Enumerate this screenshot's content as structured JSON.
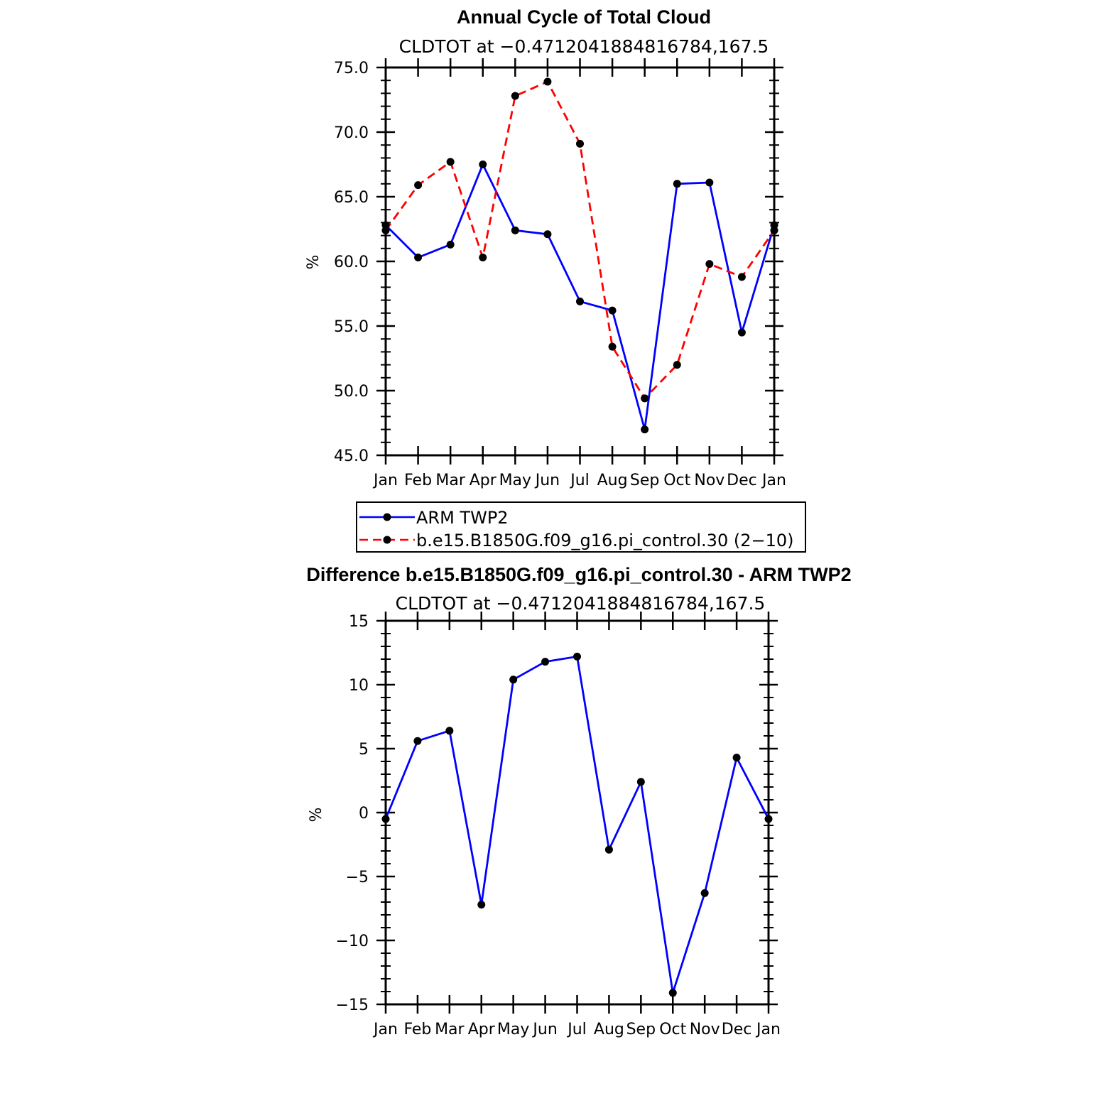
{
  "colors": {
    "obs": "#0000ff",
    "model": "#ff0000",
    "diff": "#0000ff",
    "marker": "#000000"
  },
  "chart_data": [
    {
      "id": "annual-cycle",
      "type": "line",
      "title": "Annual Cycle of Total Cloud",
      "subtitle": "CLDTOT at −0.4712041884816784,167.5",
      "ylabel": "%",
      "categories": [
        "Jan",
        "Feb",
        "Mar",
        "Apr",
        "May",
        "Jun",
        "Jul",
        "Aug",
        "Sep",
        "Oct",
        "Nov",
        "Dec",
        "Jan"
      ],
      "ylim": [
        45,
        75
      ],
      "yticks": [
        45,
        50,
        55,
        60,
        65,
        70,
        75
      ],
      "ytick_labels": [
        "45.0",
        "50.0",
        "55.0",
        "60.0",
        "65.0",
        "70.0",
        "75.0"
      ],
      "series": [
        {
          "name": "ARM TWP2",
          "style": "solid",
          "values": [
            62.8,
            60.3,
            61.3,
            67.5,
            62.4,
            62.1,
            56.9,
            56.2,
            47.0,
            66.0,
            66.1,
            54.5,
            62.8
          ]
        },
        {
          "name": "b.e15.B1850G.f09_g16.pi_control.30 (2−10)",
          "style": "dashed",
          "values": [
            62.4,
            65.9,
            67.7,
            60.3,
            72.8,
            73.9,
            69.1,
            53.4,
            49.4,
            52.0,
            59.8,
            58.8,
            62.4
          ]
        }
      ]
    },
    {
      "id": "difference",
      "type": "line",
      "title": "Difference b.e15.B1850G.f09_g16.pi_control.30 - ARM TWP2",
      "subtitle": "CLDTOT at −0.4712041884816784,167.5",
      "ylabel": "%",
      "categories": [
        "Jan",
        "Feb",
        "Mar",
        "Apr",
        "May",
        "Jun",
        "Jul",
        "Aug",
        "Sep",
        "Oct",
        "Nov",
        "Dec",
        "Jan"
      ],
      "ylim": [
        -15,
        15
      ],
      "yticks": [
        -15,
        -10,
        -5,
        0,
        5,
        10,
        15
      ],
      "ytick_labels": [
        "−15",
        "−10",
        "−5",
        "0",
        "5",
        "10",
        "15"
      ],
      "series": [
        {
          "name": "Difference",
          "style": "solid",
          "values": [
            -0.5,
            5.6,
            6.4,
            -7.2,
            10.4,
            11.8,
            12.2,
            -2.9,
            2.4,
            -14.1,
            -6.3,
            4.3,
            -0.5
          ]
        }
      ]
    }
  ]
}
